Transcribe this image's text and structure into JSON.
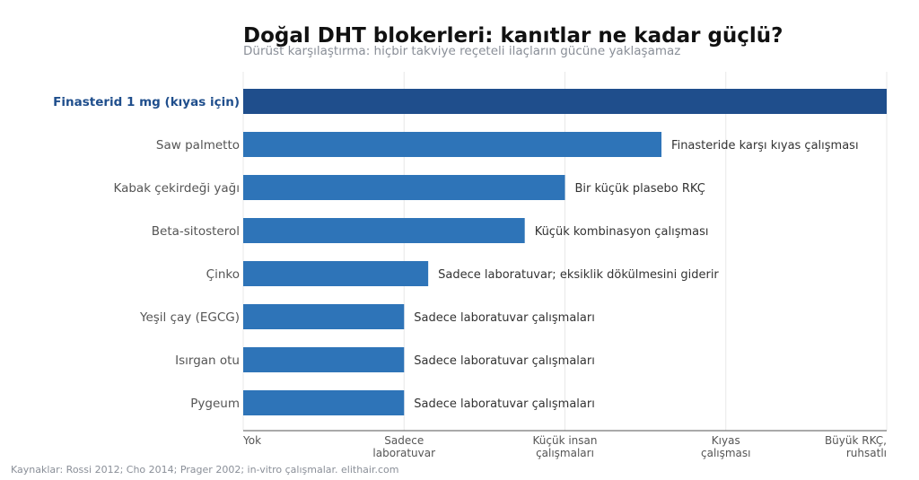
{
  "title": "Doğal DHT blokerleri: kanıtlar ne kadar güçlü?",
  "subtitle": "Dürüst karşılaştırma: hiçbir takviye reçeteli ilaçların gücüne yaklaşamaz",
  "footer": "Kaynaklar: Rossi 2012; Cho 2014; Prager 2002; in-vitro çalışmalar. elithair.com",
  "colors": {
    "highlight": "#1f4e8c",
    "bar": "#2e74b8",
    "grid": "#e8e8e8",
    "axis": "#555555",
    "label": "#555555"
  },
  "chart_data": {
    "type": "bar",
    "orientation": "horizontal",
    "xlim": [
      0,
      4
    ],
    "x_ticks": [
      {
        "value": 0,
        "label": [
          "Yok"
        ]
      },
      {
        "value": 1,
        "label": [
          "Sadece",
          "laboratuvar"
        ]
      },
      {
        "value": 2,
        "label": [
          "Küçük insan",
          "çalışmaları"
        ]
      },
      {
        "value": 3,
        "label": [
          "Kıyas",
          "çalışması"
        ]
      },
      {
        "value": 4,
        "label": [
          "Büyük RKÇ,",
          "ruhsatlı"
        ]
      }
    ],
    "grid": "vertical",
    "bars": [
      {
        "category": "Finasterid 1 mg (kıyas için)",
        "value": 4.0,
        "annotation": "",
        "highlight": true
      },
      {
        "category": "Saw palmetto",
        "value": 2.6,
        "annotation": "Finasteride karşı kıyas çalışması"
      },
      {
        "category": "Kabak çekirdeği yağı",
        "value": 2.0,
        "annotation": "Bir küçük plasebo RKÇ"
      },
      {
        "category": "Beta-sitosterol",
        "value": 1.75,
        "annotation": "Küçük kombinasyon çalışması"
      },
      {
        "category": "Çinko",
        "value": 1.15,
        "annotation": "Sadece laboratuvar; eksiklik dökülmesini giderir"
      },
      {
        "category": "Yeşil çay (EGCG)",
        "value": 1.0,
        "annotation": "Sadece laboratuvar çalışmaları"
      },
      {
        "category": "Isırgan otu",
        "value": 1.0,
        "annotation": "Sadece laboratuvar çalışmaları"
      },
      {
        "category": "Pygeum",
        "value": 1.0,
        "annotation": "Sadece laboratuvar çalışmaları"
      }
    ]
  }
}
